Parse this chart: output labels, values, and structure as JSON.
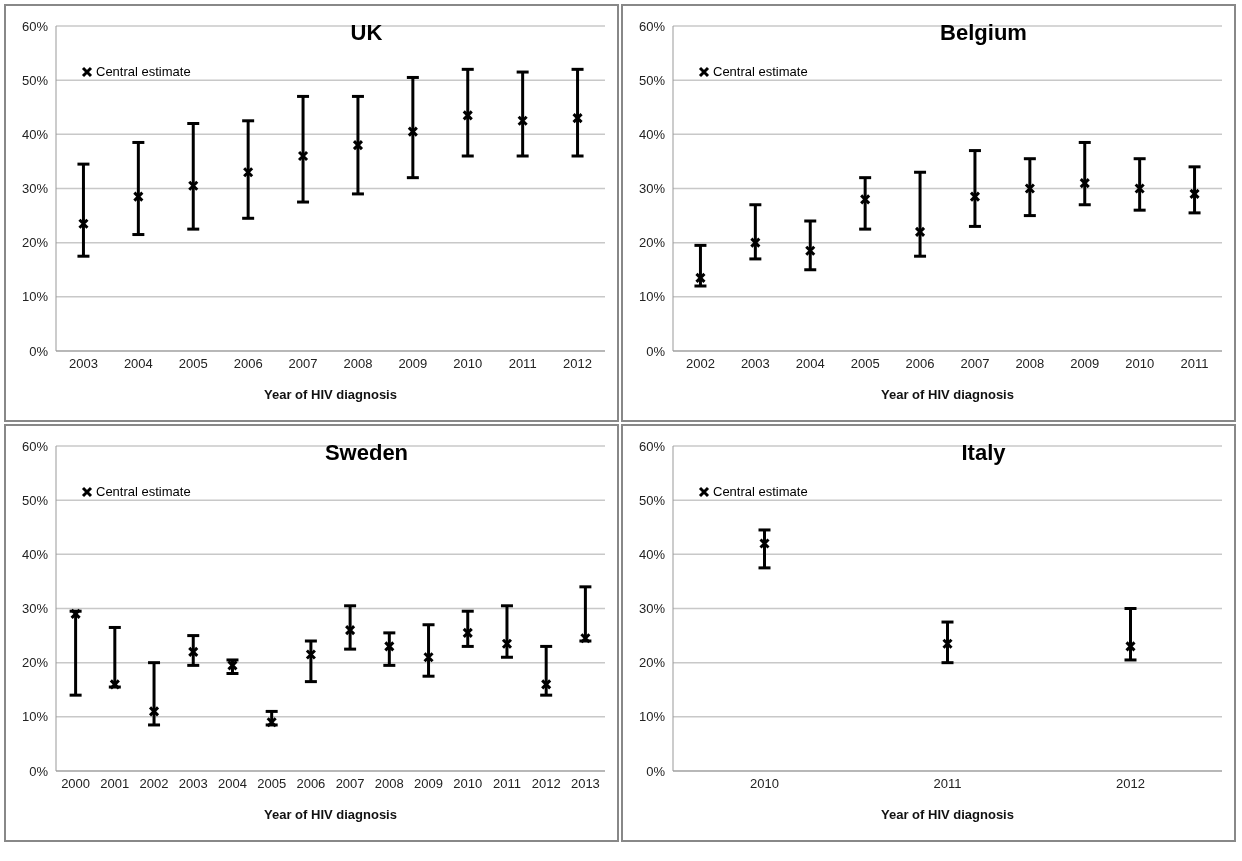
{
  "chart_data": [
    {
      "type": "scatter",
      "title": "UK",
      "xlabel": "Year of HIV diagnosis",
      "categories": [
        "2003",
        "2004",
        "2005",
        "2006",
        "2007",
        "2008",
        "2009",
        "2010",
        "2011",
        "2012"
      ],
      "series": [
        {
          "name": "Central estimate",
          "color": "#000000",
          "values": [
            23.5,
            28.5,
            30.5,
            33,
            36,
            38,
            40.5,
            43.5,
            42.5,
            43
          ],
          "errors": [
            [
              17.5,
              34.5
            ],
            [
              21.5,
              38.5
            ],
            [
              22.5,
              42
            ],
            [
              24.5,
              42.5
            ],
            [
              27.5,
              47
            ],
            [
              29,
              47
            ],
            [
              32,
              50.5
            ],
            [
              36,
              52
            ],
            [
              36,
              51.5
            ],
            [
              36,
              52
            ]
          ]
        }
      ],
      "ylim": [
        0,
        60
      ],
      "yticks": [
        {
          "value": 0,
          "label": "0%"
        },
        {
          "value": 10,
          "label": "10%"
        },
        {
          "value": 20,
          "label": "20%"
        },
        {
          "value": 30,
          "label": "30%"
        },
        {
          "value": 40,
          "label": "40%"
        },
        {
          "value": 50,
          "label": "50%"
        },
        {
          "value": 60,
          "label": "60%"
        }
      ],
      "grid": "y",
      "legend": "top left",
      "marker": "cross"
    },
    {
      "type": "scatter",
      "title": "Belgium",
      "xlabel": "Year of HIV diagnosis",
      "categories": [
        "2002",
        "2003",
        "2004",
        "2005",
        "2006",
        "2007",
        "2008",
        "2009",
        "2010",
        "2011"
      ],
      "series": [
        {
          "name": "Central estimate",
          "color": "#000000",
          "values": [
            13.5,
            20,
            18.5,
            28,
            22,
            28.5,
            30,
            31,
            30,
            29
          ],
          "errors": [
            [
              12,
              19.5
            ],
            [
              17,
              27
            ],
            [
              15,
              24
            ],
            [
              22.5,
              32
            ],
            [
              17.5,
              33
            ],
            [
              23,
              37
            ],
            [
              25,
              35.5
            ],
            [
              27,
              38.5
            ],
            [
              26,
              35.5
            ],
            [
              25.5,
              34
            ]
          ]
        }
      ],
      "ylim": [
        0,
        60
      ],
      "yticks": [
        {
          "value": 0,
          "label": "0%"
        },
        {
          "value": 10,
          "label": "10%"
        },
        {
          "value": 20,
          "label": "20%"
        },
        {
          "value": 30,
          "label": "30%"
        },
        {
          "value": 40,
          "label": "40%"
        },
        {
          "value": 50,
          "label": "50%"
        },
        {
          "value": 60,
          "label": "60%"
        }
      ],
      "grid": "y",
      "legend": "top left",
      "marker": "cross"
    },
    {
      "type": "scatter",
      "title": "Sweden",
      "xlabel": "Year of HIV diagnosis",
      "categories": [
        "2000",
        "2001",
        "2002",
        "2003",
        "2004",
        "2005",
        "2006",
        "2007",
        "2008",
        "2009",
        "2010",
        "2011",
        "2012",
        "2013"
      ],
      "series": [
        {
          "name": "Central estimate",
          "color": "#000000",
          "values": [
            29,
            16,
            11,
            22,
            19.5,
            9,
            21.5,
            26,
            23,
            21,
            25.5,
            23.5,
            16,
            24.5
          ],
          "errors": [
            [
              14,
              29.5
            ],
            [
              15.5,
              26.5
            ],
            [
              8.5,
              20
            ],
            [
              19.5,
              25
            ],
            [
              18,
              20.5
            ],
            [
              8.5,
              11
            ],
            [
              16.5,
              24
            ],
            [
              22.5,
              30.5
            ],
            [
              19.5,
              25.5
            ],
            [
              17.5,
              27
            ],
            [
              23,
              29.5
            ],
            [
              21,
              30.5
            ],
            [
              14,
              23
            ],
            [
              24,
              34
            ]
          ]
        }
      ],
      "ylim": [
        0,
        60
      ],
      "yticks": [
        {
          "value": 0,
          "label": "0%"
        },
        {
          "value": 10,
          "label": "10%"
        },
        {
          "value": 20,
          "label": "20%"
        },
        {
          "value": 30,
          "label": "30%"
        },
        {
          "value": 40,
          "label": "40%"
        },
        {
          "value": 50,
          "label": "50%"
        },
        {
          "value": 60,
          "label": "60%"
        }
      ],
      "grid": "y",
      "legend": "top left",
      "marker": "cross"
    },
    {
      "type": "scatter",
      "title": "Italy",
      "xlabel": "Year of HIV diagnosis",
      "categories": [
        "2010",
        "2011",
        "2012"
      ],
      "series": [
        {
          "name": "Central estimate",
          "color": "#000000",
          "values": [
            42,
            23.5,
            23
          ],
          "errors": [
            [
              37.5,
              44.5
            ],
            [
              20,
              27.5
            ],
            [
              20.5,
              30
            ]
          ]
        }
      ],
      "ylim": [
        0,
        60
      ],
      "yticks": [
        {
          "value": 0,
          "label": "0%"
        },
        {
          "value": 10,
          "label": "10%"
        },
        {
          "value": 20,
          "label": "20%"
        },
        {
          "value": 30,
          "label": "30%"
        },
        {
          "value": 40,
          "label": "40%"
        },
        {
          "value": 50,
          "label": "50%"
        },
        {
          "value": 60,
          "label": "60%"
        }
      ],
      "grid": "y",
      "legend": "top left",
      "marker": "cross"
    }
  ]
}
